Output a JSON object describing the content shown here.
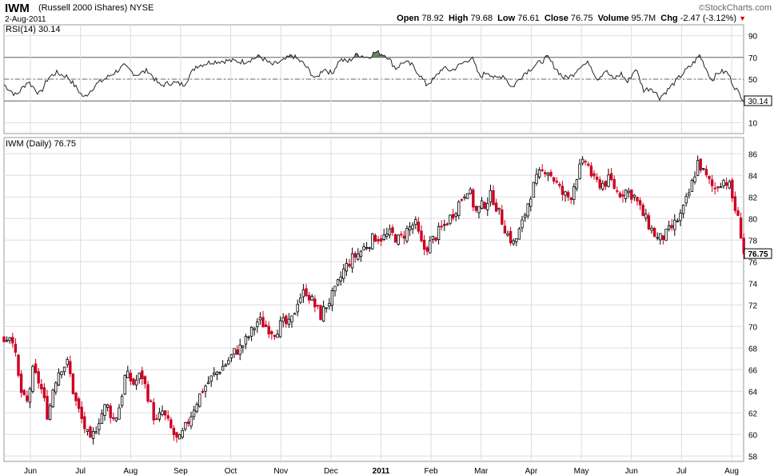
{
  "header": {
    "ticker": "IWM",
    "name": "(Russell 2000 iShares)",
    "exchange": "NYSE",
    "date": "2-Aug-2011",
    "brand": "StockCharts.com",
    "open_label": "Open",
    "open": "78.92",
    "high_label": "High",
    "high": "79.68",
    "low_label": "Low",
    "low": "76.61",
    "close_label": "Close",
    "close": "76.75",
    "volume_label": "Volume",
    "volume": "95.7M",
    "chg_label": "Chg",
    "chg": "-2.47 (-3.12%)"
  },
  "colors": {
    "up": "#000000",
    "down": "#cc0022",
    "grid": "#dddddd",
    "rsi_fill": "#3d6b3d"
  },
  "chart_data": [
    {
      "type": "line",
      "title": "RSI(14) 30.14",
      "ylim": [
        0,
        100
      ],
      "yticks": [
        10,
        30,
        50,
        70,
        90
      ],
      "reference_lines": [
        30,
        50,
        70
      ],
      "last_value": "30.14",
      "anchors": [
        {
          "x": 0,
          "y": 45
        },
        {
          "x": 15,
          "y": 35
        },
        {
          "x": 30,
          "y": 48
        },
        {
          "x": 45,
          "y": 36
        },
        {
          "x": 55,
          "y": 51
        },
        {
          "x": 65,
          "y": 56
        },
        {
          "x": 80,
          "y": 52
        },
        {
          "x": 100,
          "y": 33
        },
        {
          "x": 115,
          "y": 45
        },
        {
          "x": 130,
          "y": 52
        },
        {
          "x": 150,
          "y": 62
        },
        {
          "x": 165,
          "y": 54
        },
        {
          "x": 180,
          "y": 58
        },
        {
          "x": 195,
          "y": 44
        },
        {
          "x": 210,
          "y": 47
        },
        {
          "x": 225,
          "y": 45
        },
        {
          "x": 240,
          "y": 62
        },
        {
          "x": 260,
          "y": 66
        },
        {
          "x": 280,
          "y": 67
        },
        {
          "x": 300,
          "y": 66
        },
        {
          "x": 320,
          "y": 71
        },
        {
          "x": 335,
          "y": 63
        },
        {
          "x": 350,
          "y": 67
        },
        {
          "x": 360,
          "y": 72
        },
        {
          "x": 375,
          "y": 64
        },
        {
          "x": 390,
          "y": 50
        },
        {
          "x": 400,
          "y": 60
        },
        {
          "x": 410,
          "y": 55
        },
        {
          "x": 420,
          "y": 68
        },
        {
          "x": 430,
          "y": 66
        },
        {
          "x": 442,
          "y": 73
        },
        {
          "x": 455,
          "y": 70
        },
        {
          "x": 465,
          "y": 75
        },
        {
          "x": 478,
          "y": 72
        },
        {
          "x": 490,
          "y": 60
        },
        {
          "x": 500,
          "y": 66
        },
        {
          "x": 510,
          "y": 63
        },
        {
          "x": 520,
          "y": 54
        },
        {
          "x": 528,
          "y": 45
        },
        {
          "x": 538,
          "y": 50
        },
        {
          "x": 548,
          "y": 60
        },
        {
          "x": 560,
          "y": 58
        },
        {
          "x": 570,
          "y": 63
        },
        {
          "x": 585,
          "y": 70
        },
        {
          "x": 595,
          "y": 52
        },
        {
          "x": 605,
          "y": 57
        },
        {
          "x": 615,
          "y": 50
        },
        {
          "x": 625,
          "y": 54
        },
        {
          "x": 635,
          "y": 42
        },
        {
          "x": 650,
          "y": 55
        },
        {
          "x": 665,
          "y": 63
        },
        {
          "x": 680,
          "y": 70
        },
        {
          "x": 690,
          "y": 60
        },
        {
          "x": 700,
          "y": 51
        },
        {
          "x": 710,
          "y": 53
        },
        {
          "x": 720,
          "y": 62
        },
        {
          "x": 732,
          "y": 65
        },
        {
          "x": 742,
          "y": 50
        },
        {
          "x": 752,
          "y": 58
        },
        {
          "x": 762,
          "y": 50
        },
        {
          "x": 772,
          "y": 55
        },
        {
          "x": 780,
          "y": 47
        },
        {
          "x": 790,
          "y": 60
        },
        {
          "x": 800,
          "y": 40
        },
        {
          "x": 810,
          "y": 42
        },
        {
          "x": 820,
          "y": 33
        },
        {
          "x": 830,
          "y": 40
        },
        {
          "x": 840,
          "y": 48
        },
        {
          "x": 850,
          "y": 56
        },
        {
          "x": 860,
          "y": 63
        },
        {
          "x": 870,
          "y": 72
        },
        {
          "x": 878,
          "y": 60
        },
        {
          "x": 885,
          "y": 49
        },
        {
          "x": 895,
          "y": 57
        },
        {
          "x": 905,
          "y": 56
        },
        {
          "x": 912,
          "y": 45
        },
        {
          "x": 920,
          "y": 36
        },
        {
          "x": 927,
          "y": 30
        }
      ]
    },
    {
      "type": "candlestick",
      "title": "IWM (Daily) 76.75",
      "ylim": [
        57.5,
        87.5
      ],
      "yticks": [
        58,
        60,
        62,
        64,
        66,
        68,
        70,
        72,
        74,
        76,
        78,
        80,
        82,
        84,
        86
      ],
      "last_value": "76.75",
      "xticks": [
        "Jun",
        "Jul",
        "Aug",
        "Sep",
        "Oct",
        "Nov",
        "Dec",
        "2011",
        "Feb",
        "Mar",
        "Apr",
        "May",
        "Jun",
        "Jul",
        "Aug"
      ],
      "anchors": [
        {
          "x": 0,
          "y": 68.8
        },
        {
          "x": 10,
          "y": 69.4
        },
        {
          "x": 20,
          "y": 64.2
        },
        {
          "x": 28,
          "y": 62.6
        },
        {
          "x": 36,
          "y": 65.8
        },
        {
          "x": 45,
          "y": 64.7
        },
        {
          "x": 55,
          "y": 61.6
        },
        {
          "x": 62,
          "y": 64.6
        },
        {
          "x": 70,
          "y": 66.2
        },
        {
          "x": 80,
          "y": 66.6
        },
        {
          "x": 88,
          "y": 63.4
        },
        {
          "x": 98,
          "y": 61.2
        },
        {
          "x": 108,
          "y": 59.2
        },
        {
          "x": 118,
          "y": 61.3
        },
        {
          "x": 128,
          "y": 62.8
        },
        {
          "x": 138,
          "y": 61.2
        },
        {
          "x": 145,
          "y": 62.8
        },
        {
          "x": 152,
          "y": 65.6
        },
        {
          "x": 162,
          "y": 64.7
        },
        {
          "x": 172,
          "y": 65.6
        },
        {
          "x": 180,
          "y": 63.6
        },
        {
          "x": 190,
          "y": 61.0
        },
        {
          "x": 198,
          "y": 62.1
        },
        {
          "x": 208,
          "y": 60.6
        },
        {
          "x": 218,
          "y": 59.2
        },
        {
          "x": 228,
          "y": 60.8
        },
        {
          "x": 238,
          "y": 62.6
        },
        {
          "x": 248,
          "y": 64.1
        },
        {
          "x": 258,
          "y": 65.1
        },
        {
          "x": 268,
          "y": 65.9
        },
        {
          "x": 278,
          "y": 66.6
        },
        {
          "x": 288,
          "y": 67.6
        },
        {
          "x": 298,
          "y": 68.2
        },
        {
          "x": 308,
          "y": 69.3
        },
        {
          "x": 318,
          "y": 70.6
        },
        {
          "x": 328,
          "y": 70.0
        },
        {
          "x": 338,
          "y": 69.5
        },
        {
          "x": 348,
          "y": 70.3
        },
        {
          "x": 358,
          "y": 70.1
        },
        {
          "x": 368,
          "y": 72.6
        },
        {
          "x": 378,
          "y": 73.3
        },
        {
          "x": 388,
          "y": 72.0
        },
        {
          "x": 396,
          "y": 71.0
        },
        {
          "x": 405,
          "y": 72.2
        },
        {
          "x": 414,
          "y": 73.2
        },
        {
          "x": 424,
          "y": 75.1
        },
        {
          "x": 434,
          "y": 76.2
        },
        {
          "x": 444,
          "y": 76.8
        },
        {
          "x": 454,
          "y": 77.6
        },
        {
          "x": 464,
          "y": 78.3
        },
        {
          "x": 474,
          "y": 78.2
        },
        {
          "x": 484,
          "y": 78.6
        },
        {
          "x": 494,
          "y": 78.0
        },
        {
          "x": 504,
          "y": 78.9
        },
        {
          "x": 514,
          "y": 79.6
        },
        {
          "x": 524,
          "y": 77.1
        },
        {
          "x": 532,
          "y": 77.6
        },
        {
          "x": 540,
          "y": 78.4
        },
        {
          "x": 550,
          "y": 79.3
        },
        {
          "x": 560,
          "y": 80.3
        },
        {
          "x": 570,
          "y": 81.6
        },
        {
          "x": 580,
          "y": 82.9
        },
        {
          "x": 590,
          "y": 80.6
        },
        {
          "x": 600,
          "y": 81.3
        },
        {
          "x": 610,
          "y": 82.2
        },
        {
          "x": 620,
          "y": 80.3
        },
        {
          "x": 630,
          "y": 78.5
        },
        {
          "x": 638,
          "y": 77.6
        },
        {
          "x": 648,
          "y": 79.5
        },
        {
          "x": 658,
          "y": 82.2
        },
        {
          "x": 668,
          "y": 83.9
        },
        {
          "x": 678,
          "y": 84.7
        },
        {
          "x": 688,
          "y": 83.6
        },
        {
          "x": 698,
          "y": 82.3
        },
        {
          "x": 708,
          "y": 81.9
        },
        {
          "x": 718,
          "y": 84.4
        },
        {
          "x": 728,
          "y": 85.4
        },
        {
          "x": 738,
          "y": 83.4
        },
        {
          "x": 748,
          "y": 83.2
        },
        {
          "x": 758,
          "y": 83.6
        },
        {
          "x": 768,
          "y": 82.3
        },
        {
          "x": 778,
          "y": 82.6
        },
        {
          "x": 788,
          "y": 82.1
        },
        {
          "x": 798,
          "y": 80.5
        },
        {
          "x": 808,
          "y": 79.2
        },
        {
          "x": 818,
          "y": 78.0
        },
        {
          "x": 828,
          "y": 78.5
        },
        {
          "x": 838,
          "y": 79.4
        },
        {
          "x": 848,
          "y": 80.5
        },
        {
          "x": 858,
          "y": 82.6
        },
        {
          "x": 868,
          "y": 85.3
        },
        {
          "x": 878,
          "y": 83.8
        },
        {
          "x": 888,
          "y": 82.7
        },
        {
          "x": 898,
          "y": 83.6
        },
        {
          "x": 906,
          "y": 83.3
        },
        {
          "x": 914,
          "y": 81.0
        },
        {
          "x": 920,
          "y": 79.3
        },
        {
          "x": 926,
          "y": 76.75
        }
      ]
    }
  ]
}
